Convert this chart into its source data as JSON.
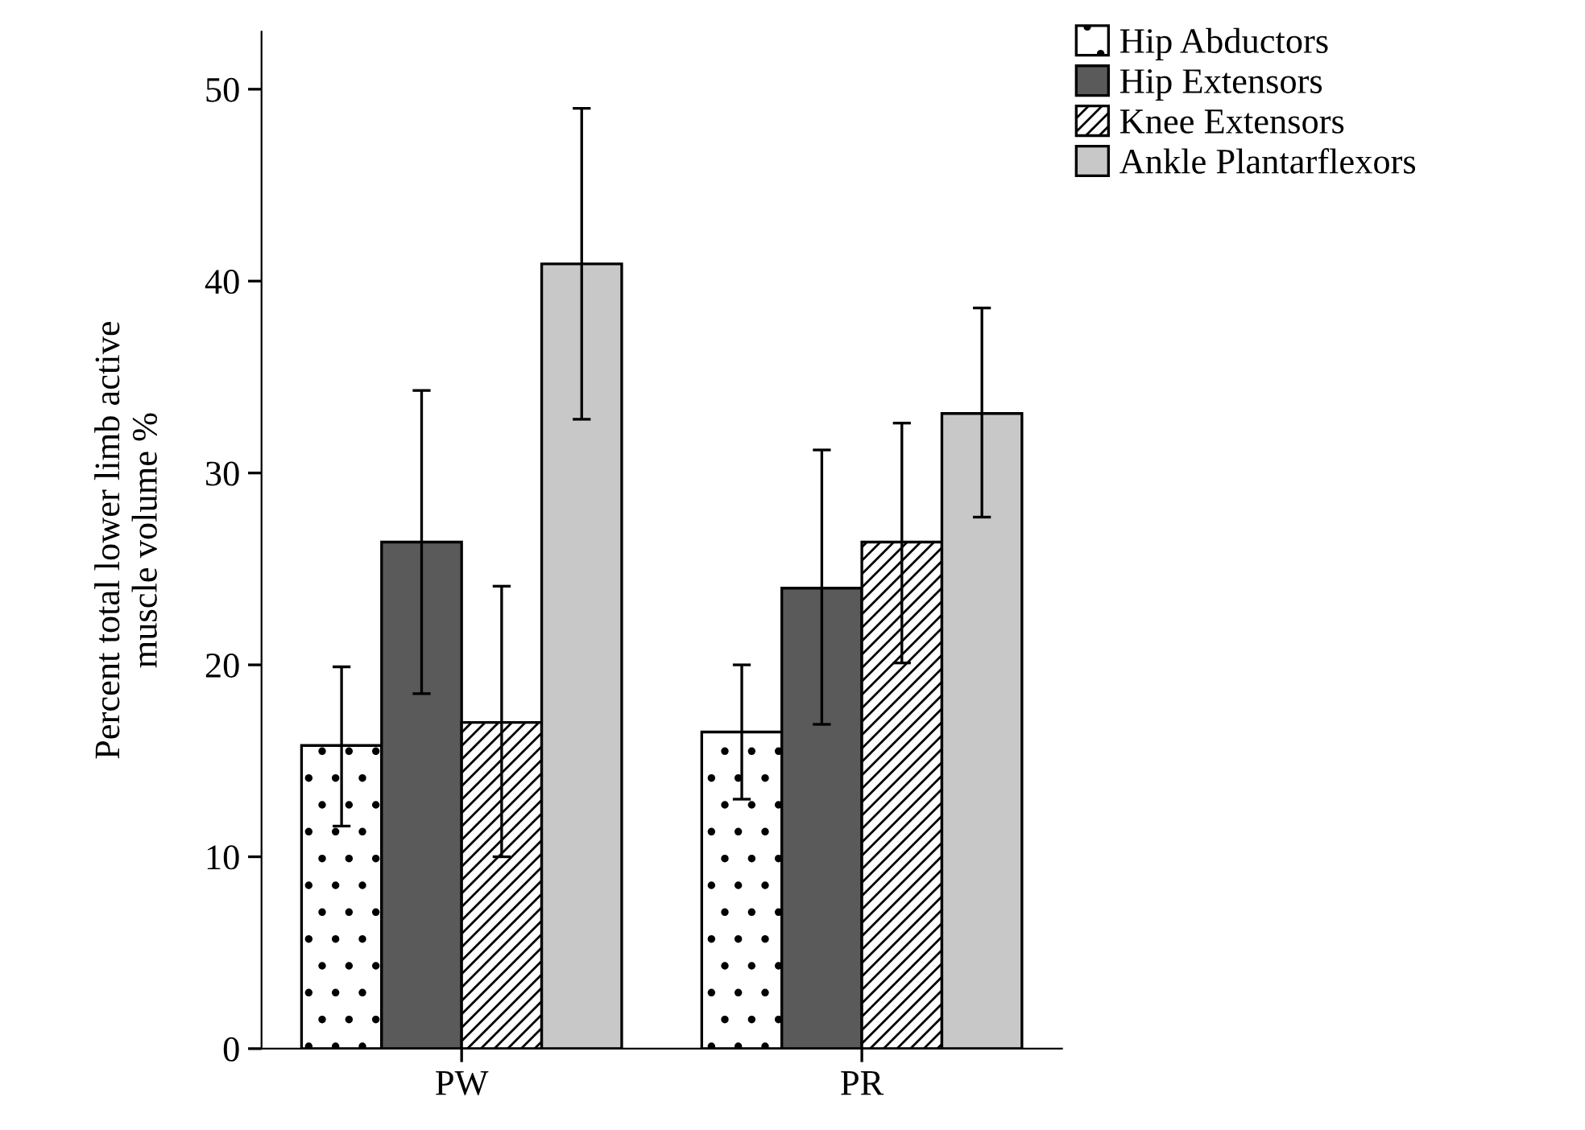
{
  "chart_data": {
    "type": "bar",
    "ylabel": "Percent total lower limb active\nmuscle volume %",
    "categories": [
      "PW",
      "PR"
    ],
    "series": [
      {
        "name": "Hip Abductors",
        "color": "#ffffff",
        "values": [
          15.8,
          16.5
        ],
        "errors": [
          [
            11.6,
            19.9
          ],
          [
            13.0,
            20.0
          ]
        ]
      },
      {
        "name": "Hip Extensors",
        "color": "#5a5a5a",
        "values": [
          26.4,
          24.0
        ],
        "errors": [
          [
            18.5,
            34.3
          ],
          [
            16.9,
            31.2
          ]
        ]
      },
      {
        "name": "Knee Extensors",
        "color": "#ffffff",
        "values": [
          17.0,
          26.4
        ],
        "errors": [
          [
            10.0,
            24.1
          ],
          [
            20.1,
            32.6
          ]
        ]
      },
      {
        "name": "Ankle Plantarflexors",
        "color": "#c8c8c8",
        "values": [
          40.9,
          33.1
        ],
        "errors": [
          [
            32.8,
            49.0
          ],
          [
            27.7,
            38.6
          ]
        ]
      }
    ],
    "ylim": [
      0,
      53
    ],
    "yticks": [
      0,
      10,
      20,
      30,
      40,
      50
    ],
    "grid": false,
    "legend": "top right"
  }
}
